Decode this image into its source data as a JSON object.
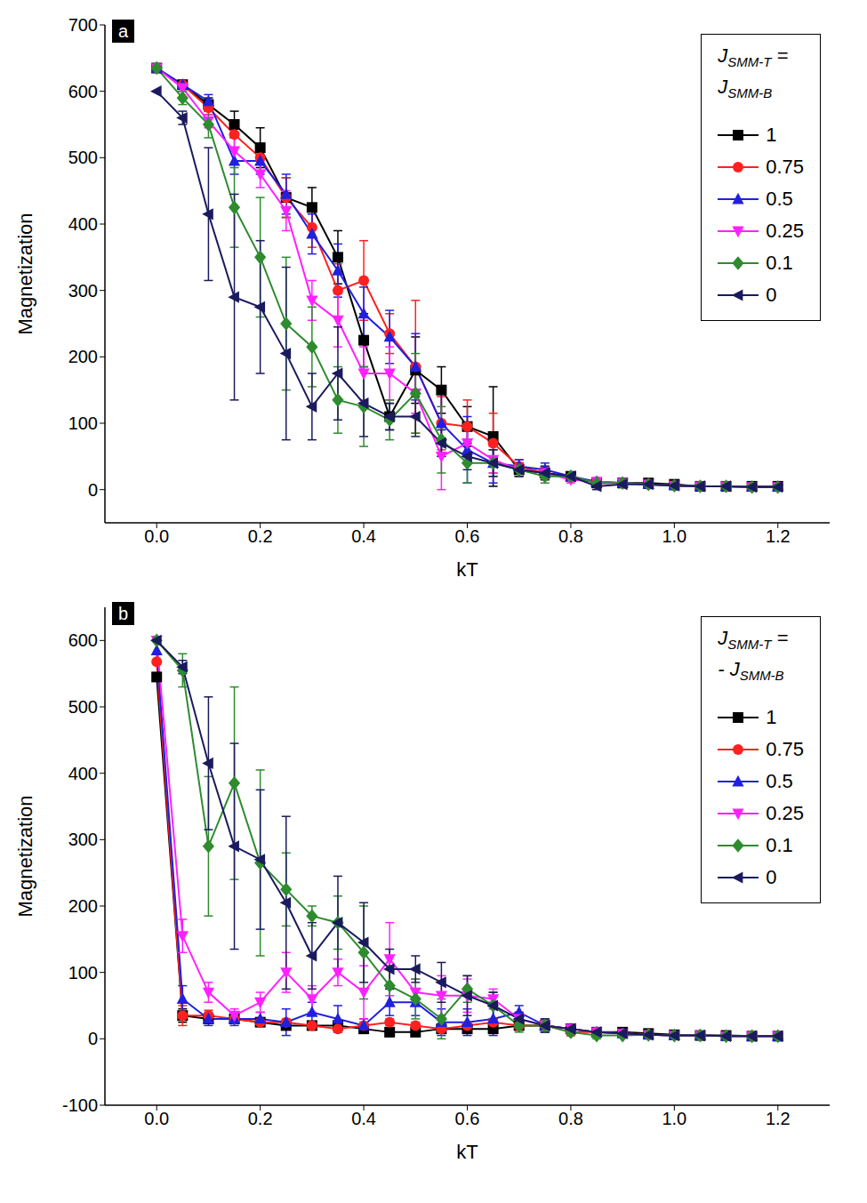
{
  "chart_data": [
    {
      "type": "line",
      "panel": "a",
      "x_label": "kT",
      "y_label": "Magnetization",
      "legend": "upper right",
      "legend_title": [
        "JSMM-T =",
        "JSMM-B"
      ],
      "x": [
        0,
        0.05,
        0.1,
        0.15,
        0.2,
        0.25,
        0.3,
        0.35,
        0.4,
        0.45,
        0.5,
        0.55,
        0.6,
        0.65,
        0.7,
        0.75,
        0.8,
        0.85,
        0.9,
        0.95,
        1.0,
        1.05,
        1.1,
        1.15,
        1.2
      ],
      "xlim": [
        -0.1,
        1.3
      ],
      "xticks": [
        {
          "value": 0,
          "label": "0.0"
        },
        0.2,
        0.4,
        0.6,
        0.8,
        {
          "value": 1,
          "label": "1.0"
        },
        1.2
      ],
      "ylim": [
        -50,
        700
      ],
      "yticks": [
        0,
        100,
        200,
        300,
        400,
        500,
        600,
        700
      ],
      "series": [
        {
          "name": "1",
          "color": "#000000",
          "marker": "square",
          "values": [
            635,
            610,
            580,
            550,
            515,
            440,
            425,
            350,
            225,
            110,
            180,
            150,
            95,
            80,
            30,
            25,
            20,
            10,
            10,
            10,
            8,
            5,
            5,
            5,
            5
          ],
          "errors": [
            0,
            5,
            10,
            20,
            30,
            30,
            30,
            40,
            40,
            20,
            50,
            35,
            30,
            75,
            10,
            10,
            5,
            5,
            5,
            5,
            3,
            3,
            3,
            3,
            3
          ]
        },
        {
          "name": "0.75",
          "color": "#ff2020",
          "marker": "circle",
          "values": [
            635,
            610,
            575,
            535,
            500,
            440,
            395,
            300,
            315,
            235,
            185,
            100,
            95,
            70,
            35,
            25,
            18,
            12,
            10,
            8,
            6,
            5,
            5,
            4,
            4
          ],
          "errors": [
            0,
            5,
            10,
            20,
            20,
            30,
            30,
            40,
            60,
            30,
            100,
            40,
            40,
            45,
            10,
            10,
            5,
            5,
            5,
            5,
            3,
            3,
            3,
            3,
            3
          ]
        },
        {
          "name": "0.5",
          "color": "#2020e0",
          "marker": "triangle-up",
          "values": [
            635,
            610,
            585,
            495,
            495,
            445,
            385,
            330,
            265,
            230,
            185,
            100,
            60,
            40,
            35,
            30,
            20,
            12,
            10,
            8,
            6,
            5,
            5,
            4,
            4
          ],
          "errors": [
            0,
            5,
            10,
            20,
            20,
            30,
            30,
            40,
            40,
            40,
            50,
            50,
            50,
            30,
            10,
            10,
            5,
            5,
            5,
            5,
            3,
            3,
            3,
            3,
            3
          ]
        },
        {
          "name": "0.25",
          "color": "#ff20ff",
          "marker": "triangle-down",
          "values": [
            635,
            605,
            555,
            510,
            475,
            420,
            285,
            255,
            175,
            175,
            145,
            50,
            70,
            45,
            30,
            25,
            15,
            12,
            10,
            8,
            6,
            5,
            5,
            4,
            4
          ],
          "errors": [
            0,
            5,
            10,
            20,
            20,
            30,
            30,
            40,
            40,
            40,
            30,
            50,
            30,
            20,
            10,
            10,
            5,
            5,
            5,
            5,
            3,
            3,
            3,
            3,
            3
          ]
        },
        {
          "name": "0.1",
          "color": "#2e8b2e",
          "marker": "diamond",
          "values": [
            635,
            590,
            550,
            425,
            350,
            250,
            215,
            135,
            125,
            105,
            145,
            75,
            40,
            40,
            30,
            20,
            20,
            10,
            10,
            8,
            6,
            5,
            5,
            4,
            4
          ],
          "errors": [
            0,
            10,
            20,
            60,
            90,
            100,
            60,
            50,
            60,
            30,
            60,
            50,
            30,
            20,
            10,
            10,
            5,
            5,
            5,
            5,
            3,
            3,
            3,
            3,
            3
          ]
        },
        {
          "name": "0",
          "color": "#1a1a5e",
          "marker": "triangle-left",
          "values": [
            600,
            560,
            415,
            290,
            275,
            205,
            125,
            175,
            130,
            110,
            110,
            70,
            50,
            40,
            30,
            25,
            20,
            5,
            8,
            8,
            6,
            5,
            5,
            4,
            4
          ],
          "errors": [
            0,
            10,
            100,
            155,
            100,
            130,
            50,
            70,
            50,
            20,
            30,
            20,
            20,
            20,
            10,
            10,
            5,
            5,
            5,
            5,
            3,
            3,
            3,
            3,
            3
          ]
        }
      ]
    },
    {
      "type": "line",
      "panel": "b",
      "x_label": "kT",
      "y_label": "Magnetization",
      "legend": "upper right",
      "legend_title": [
        "JSMM-T =",
        "- JSMM-B"
      ],
      "x": [
        0,
        0.05,
        0.1,
        0.15,
        0.2,
        0.25,
        0.3,
        0.35,
        0.4,
        0.45,
        0.5,
        0.55,
        0.6,
        0.65,
        0.7,
        0.75,
        0.8,
        0.85,
        0.9,
        0.95,
        1.0,
        1.05,
        1.1,
        1.15,
        1.2
      ],
      "xlim": [
        -0.1,
        1.3
      ],
      "xticks": [
        {
          "value": 0,
          "label": "0.0"
        },
        0.2,
        0.4,
        0.6,
        0.8,
        {
          "value": 1,
          "label": "1.0"
        },
        1.2
      ],
      "ylim": [
        -100,
        650
      ],
      "yticks": [
        -100,
        0,
        100,
        200,
        300,
        400,
        500,
        600
      ],
      "series": [
        {
          "name": "1",
          "color": "#000000",
          "marker": "square",
          "values": [
            545,
            35,
            30,
            30,
            25,
            20,
            20,
            20,
            15,
            10,
            10,
            15,
            15,
            15,
            20,
            20,
            15,
            10,
            10,
            8,
            6,
            5,
            5,
            4,
            4
          ],
          "errors": [
            0,
            10,
            5,
            5,
            5,
            5,
            5,
            5,
            5,
            5,
            5,
            5,
            5,
            5,
            5,
            5,
            5,
            5,
            5,
            3,
            3,
            3,
            3,
            3,
            3
          ]
        },
        {
          "name": "0.75",
          "color": "#ff2020",
          "marker": "circle",
          "values": [
            568,
            35,
            35,
            30,
            25,
            25,
            20,
            15,
            20,
            25,
            20,
            15,
            20,
            25,
            20,
            20,
            10,
            10,
            8,
            6,
            5,
            5,
            4,
            4,
            4
          ],
          "errors": [
            0,
            15,
            8,
            5,
            5,
            5,
            5,
            5,
            5,
            5,
            5,
            5,
            5,
            5,
            5,
            5,
            5,
            5,
            3,
            3,
            3,
            3,
            3,
            3,
            3
          ]
        },
        {
          "name": "0.5",
          "color": "#2020e0",
          "marker": "triangle-up",
          "values": [
            585,
            60,
            30,
            30,
            30,
            25,
            40,
            30,
            20,
            55,
            55,
            25,
            25,
            30,
            40,
            20,
            15,
            10,
            8,
            6,
            5,
            5,
            4,
            4,
            4
          ],
          "errors": [
            0,
            20,
            10,
            10,
            10,
            20,
            15,
            20,
            10,
            20,
            20,
            20,
            20,
            25,
            10,
            10,
            5,
            5,
            3,
            3,
            3,
            3,
            3,
            3,
            3
          ]
        },
        {
          "name": "0.25",
          "color": "#ff20ff",
          "marker": "triangle-down",
          "values": [
            600,
            155,
            70,
            35,
            55,
            100,
            60,
            100,
            70,
            120,
            70,
            65,
            65,
            60,
            30,
            20,
            15,
            10,
            8,
            6,
            5,
            5,
            4,
            4,
            4
          ],
          "errors": [
            0,
            25,
            15,
            10,
            15,
            30,
            20,
            20,
            40,
            55,
            20,
            30,
            25,
            15,
            10,
            10,
            5,
            5,
            3,
            3,
            3,
            3,
            3,
            3,
            3
          ]
        },
        {
          "name": "0.1",
          "color": "#2e8b2e",
          "marker": "diamond",
          "values": [
            600,
            555,
            290,
            385,
            265,
            225,
            185,
            175,
            130,
            80,
            60,
            30,
            75,
            50,
            20,
            20,
            10,
            5,
            5,
            6,
            5,
            5,
            4,
            4,
            4
          ],
          "errors": [
            0,
            25,
            105,
            145,
            140,
            55,
            15,
            40,
            70,
            30,
            30,
            30,
            20,
            20,
            10,
            10,
            5,
            5,
            3,
            3,
            3,
            3,
            3,
            3,
            3
          ]
        },
        {
          "name": "0",
          "color": "#1a1a5e",
          "marker": "triangle-left",
          "values": [
            600,
            560,
            415,
            290,
            270,
            205,
            125,
            175,
            145,
            105,
            105,
            85,
            65,
            50,
            30,
            20,
            15,
            10,
            8,
            6,
            5,
            5,
            4,
            4,
            4
          ],
          "errors": [
            0,
            10,
            100,
            155,
            105,
            130,
            50,
            70,
            60,
            30,
            20,
            30,
            30,
            20,
            10,
            10,
            5,
            5,
            3,
            3,
            3,
            3,
            3,
            3,
            3
          ]
        }
      ]
    }
  ]
}
